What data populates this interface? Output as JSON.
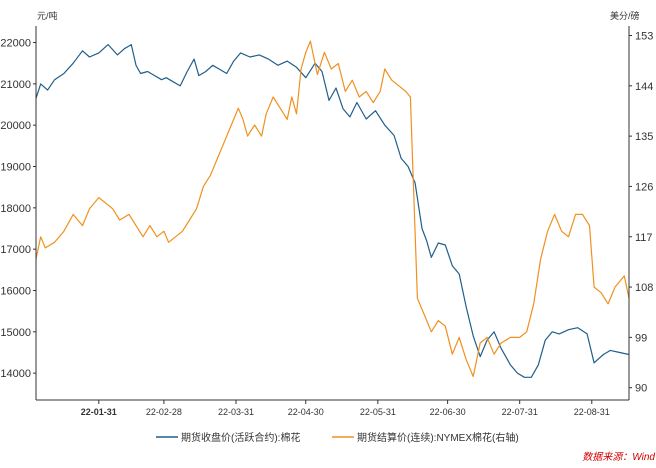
{
  "chart_data": {
    "type": "line",
    "y_left_unit": "元/吨",
    "y_right_unit": "美分/磅",
    "y_left_ticks": [
      14000,
      15000,
      16000,
      17000,
      18000,
      19000,
      20000,
      21000,
      22000
    ],
    "y_right_ticks": [
      90,
      99,
      108,
      117,
      126,
      135,
      144,
      153
    ],
    "y_left_range": [
      13350,
      22400
    ],
    "y_right_range": [
      87.8,
      154.7
    ],
    "x_range": [
      "2022-01-04",
      "2022-09-16"
    ],
    "x_ticks": [
      {
        "date": "2022-01-31",
        "label": "22-01-31",
        "bold": true
      },
      {
        "date": "2022-02-28",
        "label": "22-02-28",
        "bold": false
      },
      {
        "date": "2022-03-31",
        "label": "22-03-31",
        "bold": false
      },
      {
        "date": "2022-04-30",
        "label": "22-04-30",
        "bold": false
      },
      {
        "date": "2022-05-31",
        "label": "22-05-31",
        "bold": false
      },
      {
        "date": "2022-06-30",
        "label": "22-06-30",
        "bold": false
      },
      {
        "date": "2022-07-31",
        "label": "22-07-31",
        "bold": false
      },
      {
        "date": "2022-08-31",
        "label": "22-08-31",
        "bold": false
      }
    ],
    "series": [
      {
        "name": "期货收盘价(活跃合约):棉花",
        "axis": "left",
        "color": "#1f5f8b",
        "points": [
          [
            "2022-01-04",
            20650
          ],
          [
            "2022-01-06",
            21000
          ],
          [
            "2022-01-09",
            20850
          ],
          [
            "2022-01-12",
            21100
          ],
          [
            "2022-01-16",
            21250
          ],
          [
            "2022-01-20",
            21500
          ],
          [
            "2022-01-24",
            21800
          ],
          [
            "2022-01-27",
            21650
          ],
          [
            "2022-01-31",
            21750
          ],
          [
            "2022-02-04",
            21950
          ],
          [
            "2022-02-08",
            21700
          ],
          [
            "2022-02-11",
            21850
          ],
          [
            "2022-02-14",
            21950
          ],
          [
            "2022-02-16",
            21450
          ],
          [
            "2022-02-18",
            21250
          ],
          [
            "2022-02-21",
            21300
          ],
          [
            "2022-02-24",
            21200
          ],
          [
            "2022-02-27",
            21100
          ],
          [
            "2022-03-01",
            21150
          ],
          [
            "2022-03-04",
            21050
          ],
          [
            "2022-03-07",
            20950
          ],
          [
            "2022-03-10",
            21300
          ],
          [
            "2022-03-13",
            21600
          ],
          [
            "2022-03-15",
            21200
          ],
          [
            "2022-03-18",
            21300
          ],
          [
            "2022-03-21",
            21450
          ],
          [
            "2022-03-24",
            21350
          ],
          [
            "2022-03-27",
            21250
          ],
          [
            "2022-03-30",
            21550
          ],
          [
            "2022-04-02",
            21750
          ],
          [
            "2022-04-06",
            21650
          ],
          [
            "2022-04-10",
            21700
          ],
          [
            "2022-04-14",
            21600
          ],
          [
            "2022-04-18",
            21450
          ],
          [
            "2022-04-22",
            21550
          ],
          [
            "2022-04-26",
            21400
          ],
          [
            "2022-04-30",
            21150
          ],
          [
            "2022-05-04",
            21500
          ],
          [
            "2022-05-07",
            21300
          ],
          [
            "2022-05-10",
            20600
          ],
          [
            "2022-05-13",
            20900
          ],
          [
            "2022-05-16",
            20400
          ],
          [
            "2022-05-19",
            20200
          ],
          [
            "2022-05-22",
            20550
          ],
          [
            "2022-05-26",
            20150
          ],
          [
            "2022-05-30",
            20350
          ],
          [
            "2022-06-03",
            20000
          ],
          [
            "2022-06-07",
            19750
          ],
          [
            "2022-06-10",
            19200
          ],
          [
            "2022-06-13",
            19000
          ],
          [
            "2022-06-16",
            18600
          ],
          [
            "2022-06-19",
            17500
          ],
          [
            "2022-06-21",
            17200
          ],
          [
            "2022-06-23",
            16800
          ],
          [
            "2022-06-26",
            17150
          ],
          [
            "2022-06-29",
            17100
          ],
          [
            "2022-07-02",
            16600
          ],
          [
            "2022-07-05",
            16400
          ],
          [
            "2022-07-08",
            15600
          ],
          [
            "2022-07-11",
            14900
          ],
          [
            "2022-07-14",
            14400
          ],
          [
            "2022-07-17",
            14800
          ],
          [
            "2022-07-20",
            15000
          ],
          [
            "2022-07-23",
            14600
          ],
          [
            "2022-07-27",
            14200
          ],
          [
            "2022-07-30",
            14000
          ],
          [
            "2022-08-02",
            13900
          ],
          [
            "2022-08-05",
            13900
          ],
          [
            "2022-08-08",
            14200
          ],
          [
            "2022-08-11",
            14800
          ],
          [
            "2022-08-14",
            15000
          ],
          [
            "2022-08-17",
            14950
          ],
          [
            "2022-08-21",
            15050
          ],
          [
            "2022-08-25",
            15100
          ],
          [
            "2022-08-29",
            14950
          ],
          [
            "2022-09-01",
            14250
          ],
          [
            "2022-09-05",
            14450
          ],
          [
            "2022-09-08",
            14550
          ],
          [
            "2022-09-12",
            14500
          ],
          [
            "2022-09-16",
            14450
          ]
        ]
      },
      {
        "name": "期货结算价(连续):NYMEX棉花(右轴)",
        "axis": "right",
        "color": "#f0901e",
        "points": [
          [
            "2022-01-04",
            113
          ],
          [
            "2022-01-06",
            117
          ],
          [
            "2022-01-08",
            115
          ],
          [
            "2022-01-12",
            116
          ],
          [
            "2022-01-16",
            118
          ],
          [
            "2022-01-20",
            121
          ],
          [
            "2022-01-24",
            119
          ],
          [
            "2022-01-27",
            122
          ],
          [
            "2022-01-31",
            124
          ],
          [
            "2022-02-03",
            123
          ],
          [
            "2022-02-06",
            122
          ],
          [
            "2022-02-09",
            120
          ],
          [
            "2022-02-13",
            121
          ],
          [
            "2022-02-16",
            119
          ],
          [
            "2022-02-19",
            117
          ],
          [
            "2022-02-22",
            119
          ],
          [
            "2022-02-25",
            117
          ],
          [
            "2022-02-28",
            118
          ],
          [
            "2022-03-02",
            116
          ],
          [
            "2022-03-05",
            117
          ],
          [
            "2022-03-08",
            118
          ],
          [
            "2022-03-11",
            120
          ],
          [
            "2022-03-14",
            122
          ],
          [
            "2022-03-17",
            126
          ],
          [
            "2022-03-20",
            128
          ],
          [
            "2022-03-23",
            131
          ],
          [
            "2022-03-26",
            134
          ],
          [
            "2022-03-29",
            137
          ],
          [
            "2022-04-01",
            140
          ],
          [
            "2022-04-03",
            138
          ],
          [
            "2022-04-05",
            135
          ],
          [
            "2022-04-08",
            137
          ],
          [
            "2022-04-11",
            135
          ],
          [
            "2022-04-13",
            139
          ],
          [
            "2022-04-16",
            142
          ],
          [
            "2022-04-19",
            140
          ],
          [
            "2022-04-22",
            138
          ],
          [
            "2022-04-24",
            142
          ],
          [
            "2022-04-26",
            139
          ],
          [
            "2022-04-28",
            147
          ],
          [
            "2022-04-30",
            150
          ],
          [
            "2022-05-02",
            152
          ],
          [
            "2022-05-05",
            146
          ],
          [
            "2022-05-08",
            150
          ],
          [
            "2022-05-11",
            147
          ],
          [
            "2022-05-14",
            148
          ],
          [
            "2022-05-17",
            143
          ],
          [
            "2022-05-20",
            145
          ],
          [
            "2022-05-23",
            142
          ],
          [
            "2022-05-26",
            143
          ],
          [
            "2022-05-29",
            141
          ],
          [
            "2022-06-01",
            143
          ],
          [
            "2022-06-03",
            147
          ],
          [
            "2022-06-06",
            145
          ],
          [
            "2022-06-09",
            144
          ],
          [
            "2022-06-12",
            143
          ],
          [
            "2022-06-14",
            142
          ],
          [
            "2022-06-15",
            130
          ],
          [
            "2022-06-17",
            106
          ],
          [
            "2022-06-20",
            103
          ],
          [
            "2022-06-23",
            100
          ],
          [
            "2022-06-26",
            102
          ],
          [
            "2022-06-29",
            101
          ],
          [
            "2022-07-02",
            96
          ],
          [
            "2022-07-05",
            99
          ],
          [
            "2022-07-08",
            95
          ],
          [
            "2022-07-11",
            92
          ],
          [
            "2022-07-14",
            98
          ],
          [
            "2022-07-17",
            99
          ],
          [
            "2022-07-20",
            96
          ],
          [
            "2022-07-23",
            98
          ],
          [
            "2022-07-27",
            99
          ],
          [
            "2022-07-31",
            99
          ],
          [
            "2022-08-03",
            100
          ],
          [
            "2022-08-06",
            105
          ],
          [
            "2022-08-09",
            113
          ],
          [
            "2022-08-12",
            118
          ],
          [
            "2022-08-15",
            121
          ],
          [
            "2022-08-18",
            118
          ],
          [
            "2022-08-21",
            117
          ],
          [
            "2022-08-24",
            121
          ],
          [
            "2022-08-27",
            121
          ],
          [
            "2022-08-30",
            119
          ],
          [
            "2022-09-01",
            108
          ],
          [
            "2022-09-04",
            107
          ],
          [
            "2022-09-07",
            105
          ],
          [
            "2022-09-10",
            108
          ],
          [
            "2022-09-14",
            110
          ],
          [
            "2022-09-16",
            106
          ]
        ]
      }
    ],
    "legend_position": "bottom",
    "source": "数据来源：Wind"
  }
}
